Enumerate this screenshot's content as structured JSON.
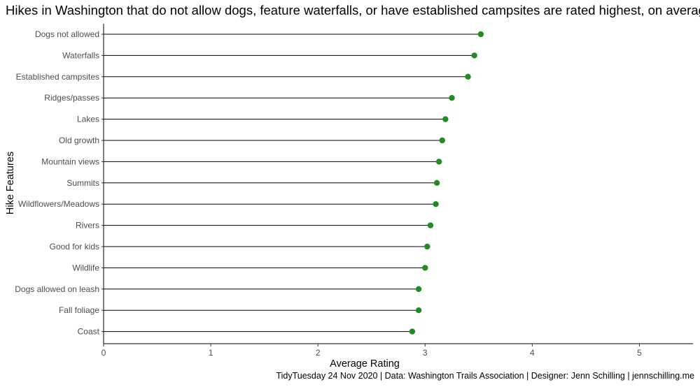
{
  "chart_data": {
    "type": "lollipop",
    "title": "Hikes in Washington that do not allow dogs, feature waterfalls, or have established campsites are rated highest, on average.",
    "xlabel": "Average Rating",
    "ylabel": "Hike Features",
    "xlim": [
      0,
      5.5
    ],
    "xticks": [
      0,
      1,
      2,
      3,
      4,
      5
    ],
    "grid": false,
    "color": "#228B22",
    "categories": [
      "Dogs not allowed",
      "Waterfalls",
      "Established campsites",
      "Ridges/passes",
      "Lakes",
      "Old growth",
      "Mountain views",
      "Summits",
      "Wildflowers/Meadows",
      "Rivers",
      "Good for kids",
      "Wildlife",
      "Dogs allowed on leash",
      "Fall foliage",
      "Coast"
    ],
    "values": [
      3.52,
      3.46,
      3.4,
      3.25,
      3.19,
      3.16,
      3.13,
      3.11,
      3.1,
      3.05,
      3.02,
      3.0,
      2.94,
      2.94,
      2.88
    ],
    "caption": "TidyTuesday 24 Nov 2020 | Data: Washington Trails Association | Designer: Jenn Schilling | jennschilling.me"
  }
}
